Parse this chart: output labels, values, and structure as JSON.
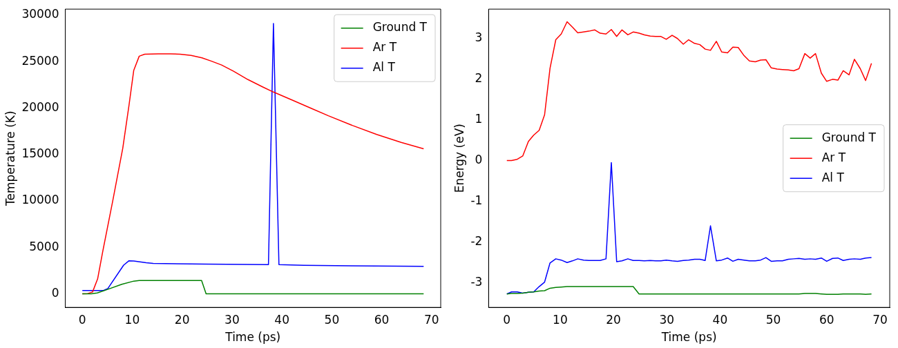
{
  "chart_data": [
    {
      "type": "line",
      "xlabel": "Time (ps)",
      "ylabel": "Temperature (K)",
      "xlim": [
        -3.42,
        71.82
      ],
      "xticks": [
        0,
        10,
        20,
        30,
        40,
        50,
        60,
        70
      ],
      "ylim": [
        -1460,
        30660
      ],
      "yticks": [
        0,
        5000,
        10000,
        15000,
        20000,
        25000,
        30000
      ],
      "grid": false,
      "legend": "top right",
      "marker": "none",
      "line_style": "solid",
      "series": [
        {
          "name": "Ground T",
          "color": "#008000",
          "x": [
            0,
            1.8,
            3.0,
            4.97,
            7.9,
            10.3,
            11.4,
            23.9,
            24.8,
            68.4
          ],
          "values": [
            0,
            0,
            100,
            460,
            1030,
            1370,
            1440,
            1440,
            0,
            0
          ]
        },
        {
          "name": "Ar T",
          "color": "#ff0000",
          "x": [
            0,
            1.07,
            2.05,
            3.07,
            4.1,
            6.09,
            8.1,
            9.35,
            10.3,
            11.4,
            12.5,
            15.2,
            17.6,
            19.6,
            21.8,
            23.97,
            25.9,
            27.9,
            30.3,
            33.2,
            36.1,
            38.3,
            42.0,
            45.9,
            49.3,
            54.2,
            59.0,
            63.9,
            68.4
          ],
          "values": [
            0,
            30,
            200,
            1620,
            4590,
            10000,
            15670,
            20300,
            24050,
            25590,
            25800,
            25850,
            25850,
            25800,
            25670,
            25410,
            25050,
            24640,
            23970,
            23070,
            22290,
            21730,
            20880,
            19970,
            19180,
            18120,
            17160,
            16310,
            15620
          ]
        },
        {
          "name": "Al T",
          "color": "#0000ff",
          "x": [
            0,
            4.24,
            5.11,
            8.28,
            9.35,
            10.3,
            12.8,
            14.2,
            24.9,
            37.3,
            38.3,
            39.4,
            44.4,
            54.2,
            68.4
          ],
          "values": [
            360,
            360,
            570,
            3090,
            3560,
            3530,
            3350,
            3270,
            3200,
            3140,
            29120,
            3140,
            3070,
            3020,
            2960
          ]
        }
      ]
    },
    {
      "type": "line",
      "xlabel": "Time (ps)",
      "ylabel": "Energy (eV)",
      "xlim": [
        -3.42,
        71.82
      ],
      "xticks": [
        0,
        10,
        20,
        30,
        40,
        50,
        60,
        70
      ],
      "ylim": [
        -3.6,
        3.71
      ],
      "yticks": [
        -3,
        -2,
        -1,
        0,
        1,
        2,
        3
      ],
      "grid": false,
      "legend": "right",
      "marker": "none",
      "line_style": "solid",
      "x": [
        0,
        0.88,
        1.95,
        2.98,
        4.05,
        5.03,
        6.06,
        7.08,
        8.1,
        9.18,
        10.2,
        11.3,
        12.3,
        13.3,
        14.4,
        15.4,
        16.5,
        17.5,
        18.6,
        19.6,
        20.6,
        21.6,
        22.7,
        23.7,
        24.8,
        25.8,
        26.9,
        27.9,
        28.9,
        29.9,
        31.0,
        32.0,
        33.1,
        34.1,
        35.2,
        36.2,
        37.2,
        38.2,
        39.3,
        40.3,
        41.4,
        42.4,
        43.4,
        44.5,
        45.5,
        46.6,
        47.6,
        48.6,
        49.6,
        50.7,
        51.7,
        52.8,
        53.8,
        54.8,
        55.9,
        56.9,
        57.9,
        59.0,
        60.0,
        61.1,
        62.1,
        63.1,
        64.2,
        65.2,
        66.3,
        67.3,
        68.4
      ],
      "series": [
        {
          "name": "Ground T",
          "color": "#008000",
          "values": [
            -3.27,
            -3.26,
            -3.26,
            -3.25,
            -3.23,
            -3.22,
            -3.2,
            -3.19,
            -3.13,
            -3.11,
            -3.1,
            -3.09,
            -3.09,
            -3.09,
            -3.09,
            -3.09,
            -3.09,
            -3.09,
            -3.09,
            -3.09,
            -3.09,
            -3.09,
            -3.09,
            -3.09,
            -3.27,
            -3.27,
            -3.27,
            -3.27,
            -3.27,
            -3.27,
            -3.27,
            -3.27,
            -3.27,
            -3.27,
            -3.27,
            -3.27,
            -3.27,
            -3.27,
            -3.27,
            -3.27,
            -3.27,
            -3.27,
            -3.27,
            -3.27,
            -3.27,
            -3.27,
            -3.27,
            -3.27,
            -3.27,
            -3.27,
            -3.27,
            -3.27,
            -3.27,
            -3.27,
            -3.26,
            -3.26,
            -3.26,
            -3.27,
            -3.28,
            -3.28,
            -3.28,
            -3.27,
            -3.27,
            -3.27,
            -3.27,
            -3.28,
            -3.27
          ]
        },
        {
          "name": "Ar T",
          "color": "#ff0000",
          "values": [
            0,
            0,
            0.03,
            0.11,
            0.47,
            0.62,
            0.74,
            1.12,
            2.26,
            2.96,
            3.1,
            3.4,
            3.27,
            3.13,
            3.15,
            3.17,
            3.2,
            3.12,
            3.1,
            3.21,
            3.04,
            3.2,
            3.08,
            3.15,
            3.12,
            3.08,
            3.05,
            3.04,
            3.04,
            2.97,
            3.07,
            2.99,
            2.85,
            2.96,
            2.87,
            2.84,
            2.73,
            2.7,
            2.92,
            2.66,
            2.64,
            2.78,
            2.77,
            2.57,
            2.44,
            2.42,
            2.46,
            2.47,
            2.27,
            2.24,
            2.23,
            2.22,
            2.2,
            2.25,
            2.62,
            2.51,
            2.62,
            2.14,
            1.94,
            1.99,
            1.97,
            2.2,
            2.1,
            2.48,
            2.25,
            1.96,
            2.38
          ]
        },
        {
          "name": "Al T",
          "color": "#0000ff",
          "values": [
            -3.27,
            -3.22,
            -3.22,
            -3.25,
            -3.23,
            -3.22,
            -3.09,
            -2.98,
            -2.51,
            -2.41,
            -2.44,
            -2.5,
            -2.46,
            -2.41,
            -2.44,
            -2.45,
            -2.45,
            -2.45,
            -2.41,
            -0.05,
            -2.48,
            -2.46,
            -2.41,
            -2.45,
            -2.45,
            -2.46,
            -2.45,
            -2.46,
            -2.46,
            -2.44,
            -2.46,
            -2.47,
            -2.45,
            -2.44,
            -2.42,
            -2.42,
            -2.45,
            -1.6,
            -2.46,
            -2.44,
            -2.39,
            -2.47,
            -2.42,
            -2.44,
            -2.46,
            -2.46,
            -2.44,
            -2.38,
            -2.47,
            -2.46,
            -2.46,
            -2.42,
            -2.41,
            -2.4,
            -2.42,
            -2.41,
            -2.42,
            -2.39,
            -2.47,
            -2.4,
            -2.39,
            -2.45,
            -2.42,
            -2.41,
            -2.42,
            -2.39,
            -2.38
          ]
        }
      ]
    }
  ]
}
